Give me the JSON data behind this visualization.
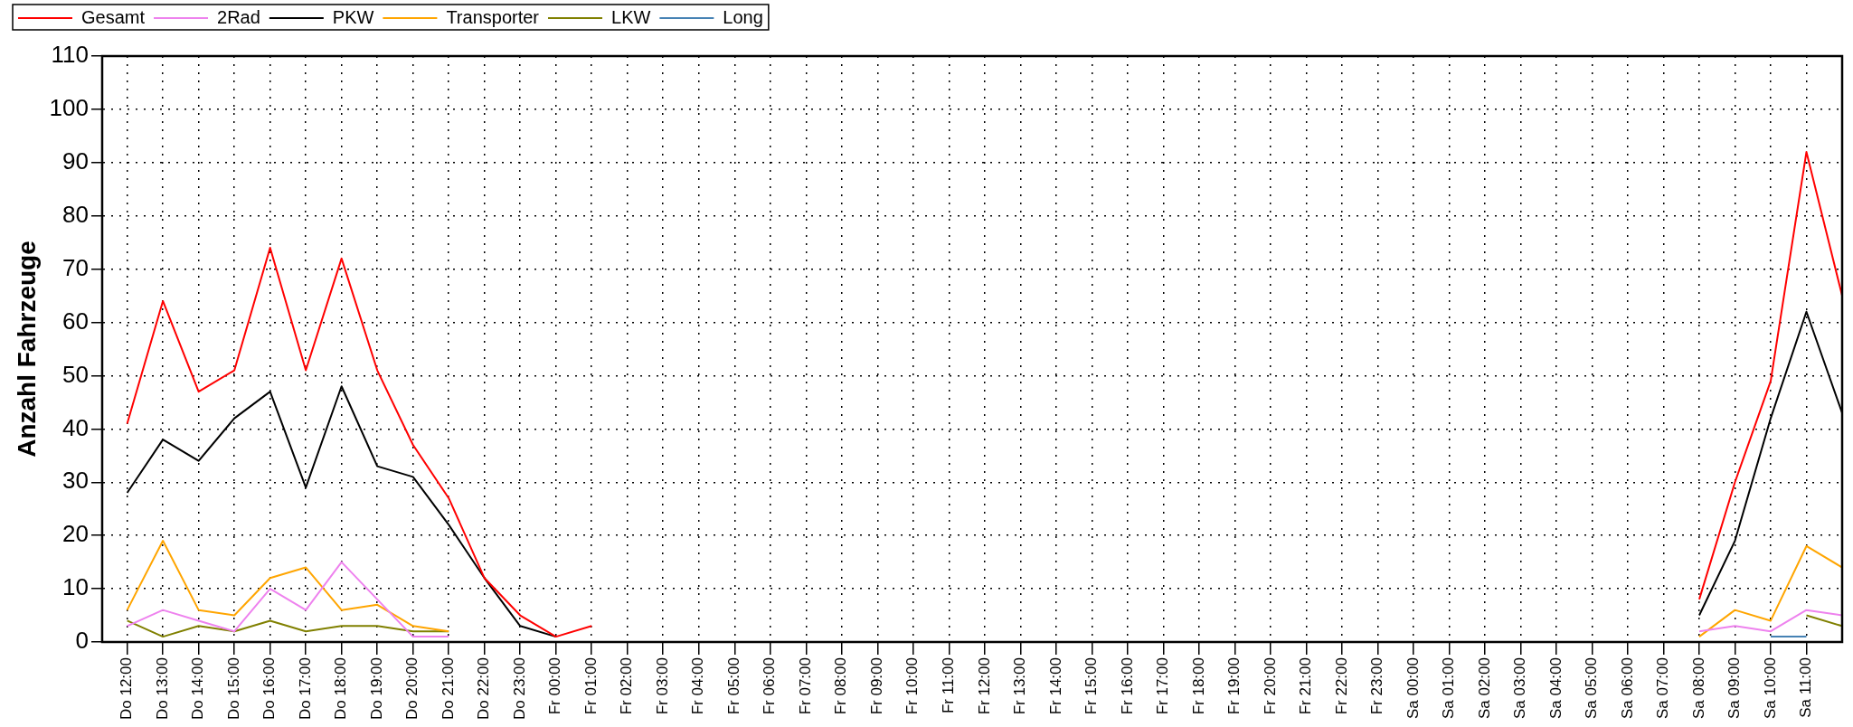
{
  "chart_data": {
    "type": "line",
    "ylabel": "Anzahl Fahrzeuge",
    "ylim": [
      0,
      110
    ],
    "yticks": [
      0,
      10,
      20,
      30,
      40,
      50,
      60,
      70,
      80,
      90,
      100,
      110
    ],
    "categories": [
      "Do 12:00",
      "Do 13:00",
      "Do 14:00",
      "Do 15:00",
      "Do 16:00",
      "Do 17:00",
      "Do 18:00",
      "Do 19:00",
      "Do 20:00",
      "Do 21:00",
      "Do 22:00",
      "Do 23:00",
      "Fr 00:00",
      "Fr 01:00",
      "Fr 02:00",
      "Fr 03:00",
      "Fr 04:00",
      "Fr 05:00",
      "Fr 06:00",
      "Fr 07:00",
      "Fr 08:00",
      "Fr 09:00",
      "Fr 10:00",
      "Fr 11:00",
      "Fr 12:00",
      "Fr 13:00",
      "Fr 14:00",
      "Fr 15:00",
      "Fr 16:00",
      "Fr 17:00",
      "Fr 18:00",
      "Fr 19:00",
      "Fr 20:00",
      "Fr 21:00",
      "Fr 22:00",
      "Fr 23:00",
      "Sa 00:00",
      "Sa 01:00",
      "Sa 02:00",
      "Sa 03:00",
      "Sa 04:00",
      "Sa 05:00",
      "Sa 06:00",
      "Sa 07:00",
      "Sa 08:00",
      "Sa 09:00",
      "Sa 10:00",
      "Sa 11:00",
      null
    ],
    "series": [
      {
        "name": "Gesamt",
        "color": "#ff0000",
        "values": [
          41,
          64,
          47,
          51,
          74,
          51,
          72,
          51,
          37,
          27,
          12,
          5,
          1,
          3,
          null,
          null,
          null,
          null,
          null,
          null,
          null,
          null,
          null,
          null,
          null,
          null,
          null,
          null,
          null,
          null,
          null,
          null,
          null,
          null,
          null,
          null,
          null,
          null,
          null,
          null,
          null,
          null,
          null,
          null,
          8,
          30,
          49,
          92,
          65
        ]
      },
      {
        "name": "2Rad",
        "color": "#ee82ee",
        "values": [
          3,
          6,
          4,
          2,
          10,
          6,
          15,
          8,
          1,
          1,
          null,
          null,
          null,
          null,
          null,
          null,
          null,
          null,
          null,
          null,
          null,
          null,
          null,
          null,
          null,
          null,
          null,
          null,
          null,
          null,
          null,
          null,
          null,
          null,
          null,
          null,
          null,
          null,
          null,
          null,
          null,
          null,
          null,
          null,
          2,
          3,
          2,
          6,
          5
        ]
      },
      {
        "name": "PKW",
        "color": "#000000",
        "values": [
          28,
          38,
          34,
          42,
          47,
          29,
          48,
          33,
          31,
          22,
          12,
          3,
          1,
          null,
          null,
          null,
          null,
          null,
          null,
          null,
          null,
          null,
          null,
          null,
          null,
          null,
          null,
          null,
          null,
          null,
          null,
          null,
          null,
          null,
          null,
          null,
          null,
          null,
          null,
          null,
          null,
          null,
          null,
          null,
          5,
          19,
          42,
          62,
          43
        ]
      },
      {
        "name": "Transporter",
        "color": "#ffa500",
        "values": [
          6,
          19,
          6,
          5,
          12,
          14,
          6,
          7,
          3,
          2,
          null,
          null,
          null,
          null,
          null,
          null,
          null,
          null,
          null,
          null,
          null,
          null,
          null,
          null,
          null,
          null,
          null,
          null,
          null,
          null,
          null,
          null,
          null,
          null,
          null,
          null,
          null,
          null,
          null,
          null,
          null,
          null,
          null,
          null,
          1,
          6,
          4,
          18,
          14
        ]
      },
      {
        "name": "LKW",
        "color": "#808000",
        "values": [
          4,
          1,
          3,
          2,
          4,
          2,
          3,
          3,
          2,
          2,
          null,
          null,
          null,
          null,
          null,
          null,
          null,
          null,
          null,
          null,
          null,
          null,
          null,
          null,
          null,
          null,
          null,
          null,
          null,
          null,
          null,
          null,
          null,
          null,
          null,
          null,
          null,
          null,
          null,
          null,
          null,
          null,
          null,
          null,
          null,
          null,
          null,
          5,
          3
        ]
      },
      {
        "name": "Long",
        "color": "#4682b4",
        "values": [
          null,
          null,
          null,
          null,
          null,
          null,
          null,
          null,
          null,
          null,
          null,
          null,
          null,
          null,
          null,
          null,
          null,
          null,
          null,
          null,
          null,
          null,
          null,
          null,
          null,
          null,
          null,
          null,
          null,
          null,
          null,
          null,
          null,
          null,
          null,
          null,
          null,
          null,
          null,
          null,
          null,
          null,
          null,
          null,
          null,
          null,
          1,
          1,
          null
        ]
      }
    ],
    "grid": true,
    "legend": "top left",
    "marker": "none",
    "line_style": "solid"
  }
}
